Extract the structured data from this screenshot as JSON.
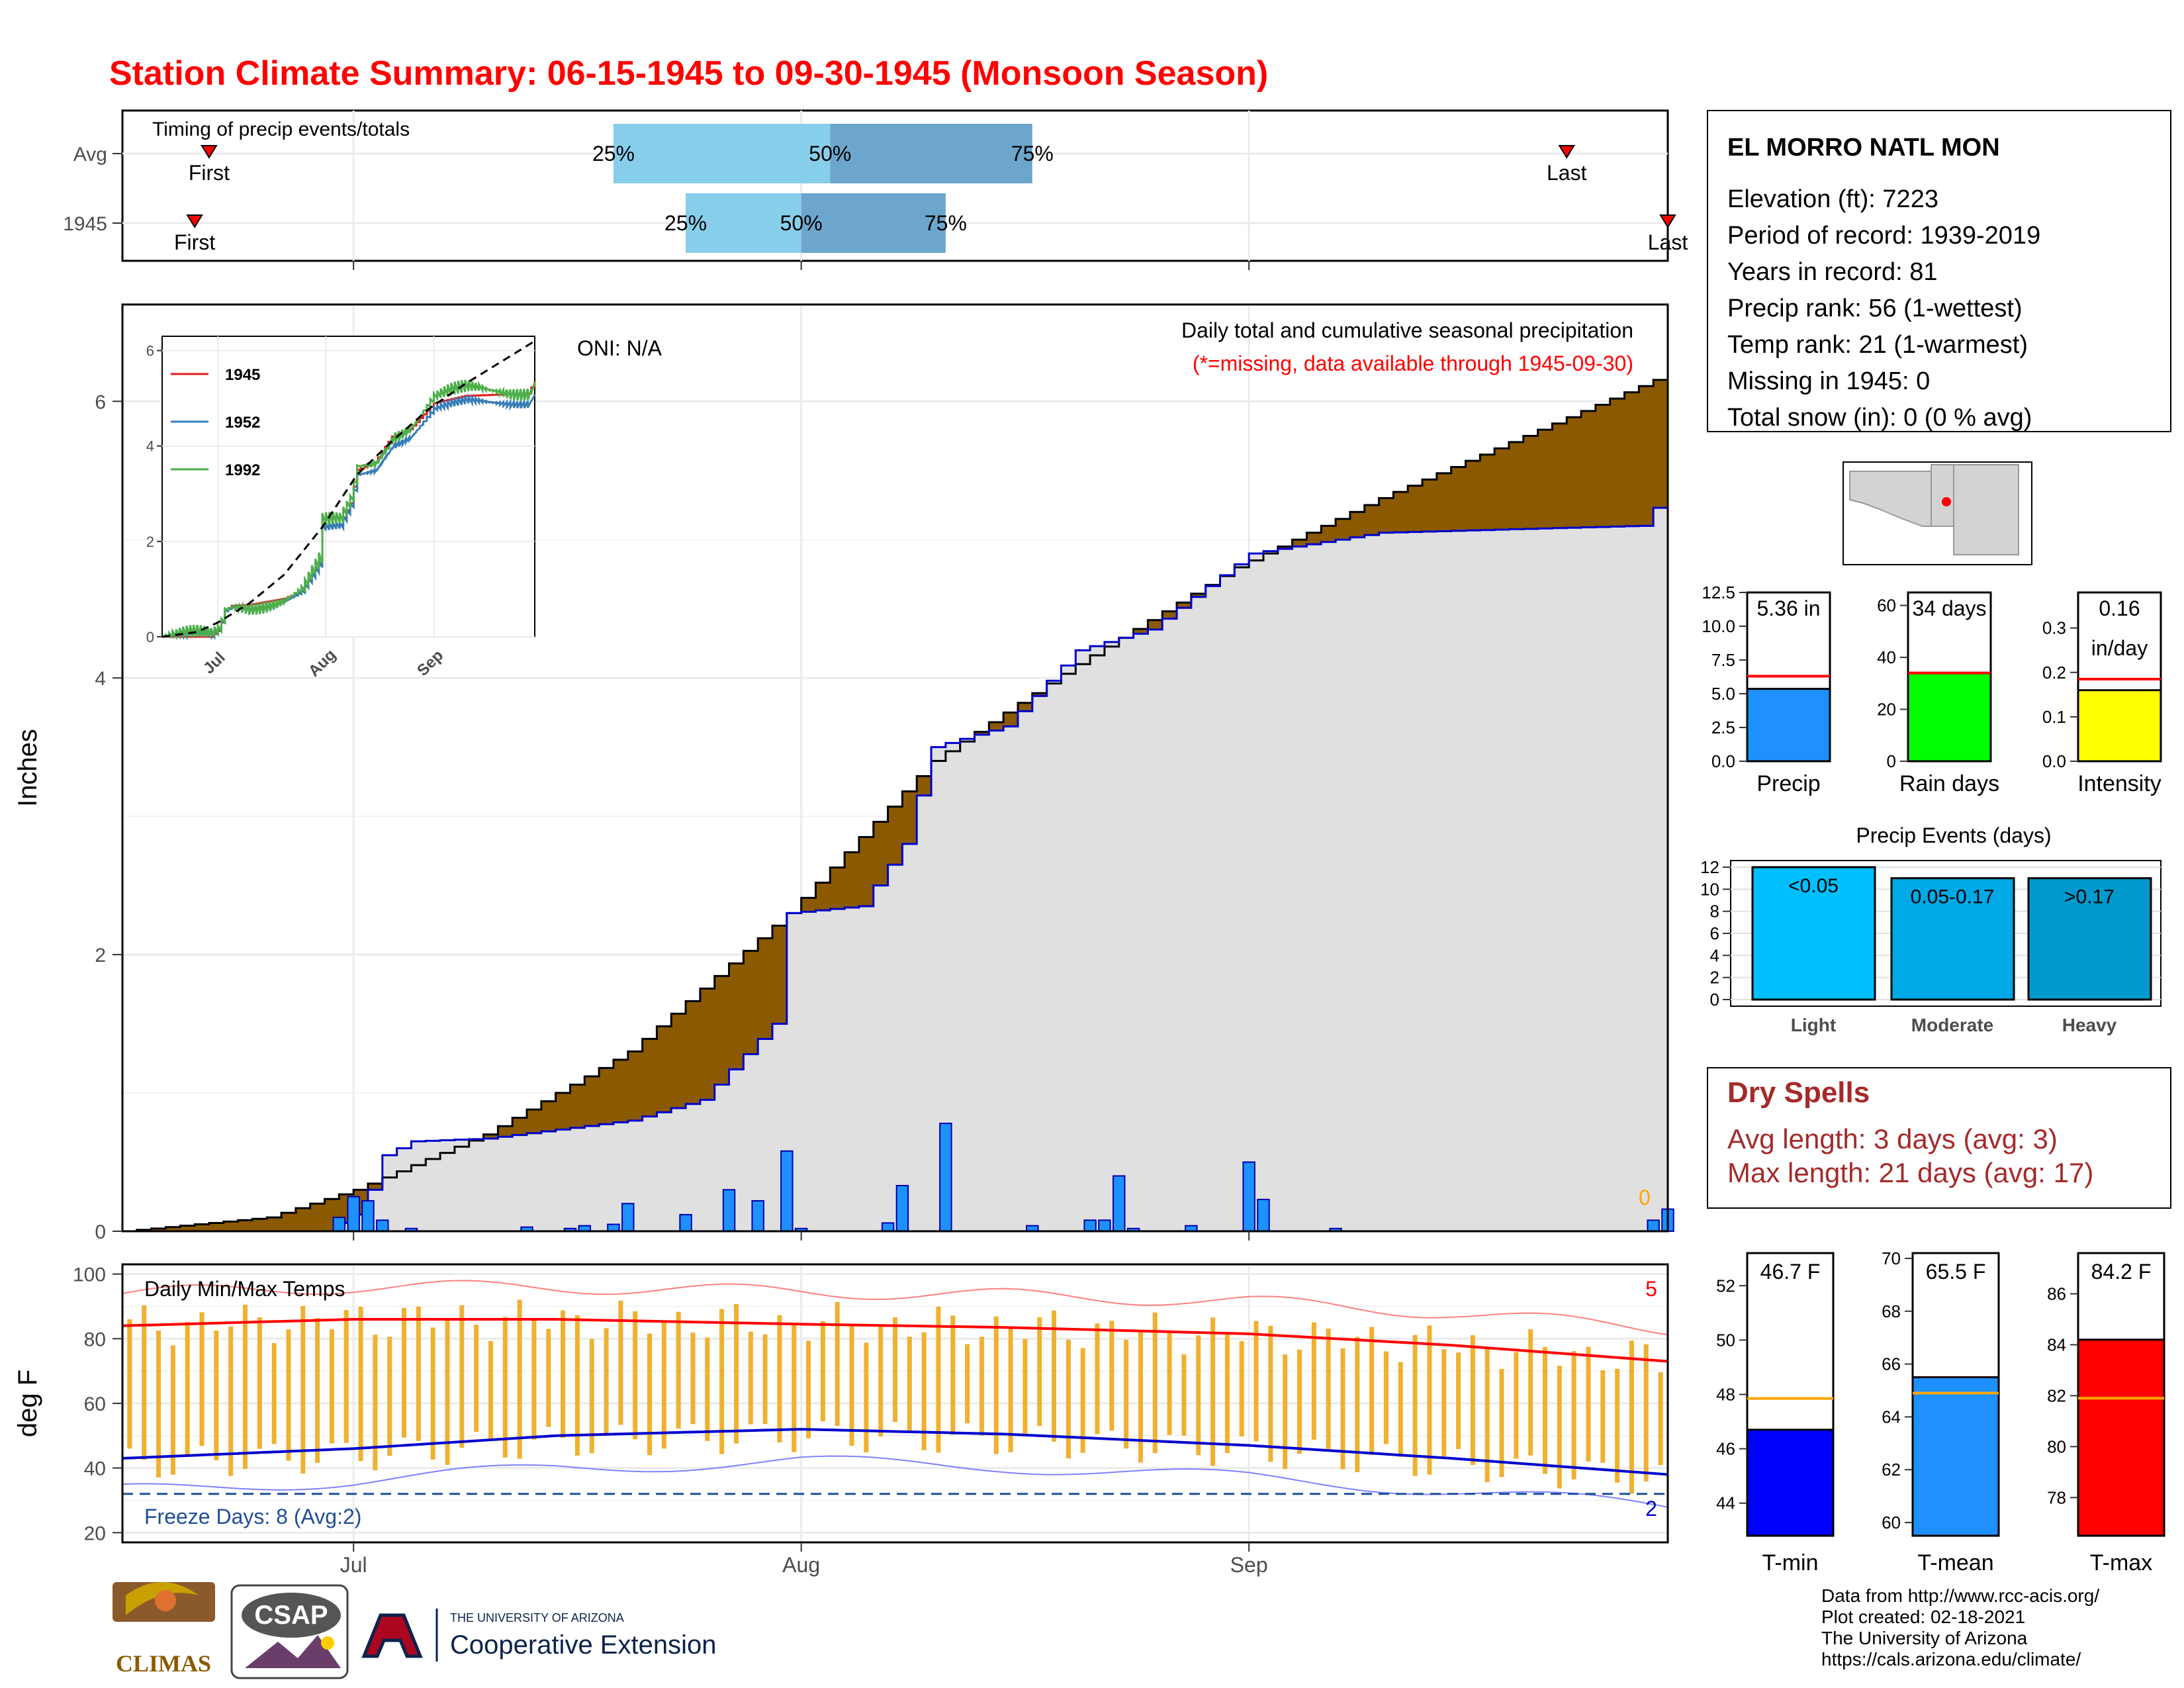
{
  "title": "Station Climate Summary: 06-15-1945 to 09-30-1945 (Monsoon Season)",
  "timing_panel": {
    "label": "Timing of precip events/totals",
    "rows": [
      {
        "name": "Avg",
        "first_label": "First",
        "last_label": "Last",
        "first_date": "06-21",
        "last_date": "09-23",
        "q25": "07-19",
        "q50": "08-03",
        "q75": "08-17",
        "q25_label": "25%",
        "q50_label": "50%",
        "q75_label": "75%"
      },
      {
        "name": "1945",
        "first_label": "First",
        "last_label": "Last",
        "first_date": "06-20",
        "last_date": "09-30",
        "q25": "07-24",
        "q50": "08-01",
        "q75": "08-11",
        "q25_label": "25%",
        "q50_label": "50%",
        "q75_label": "75%"
      }
    ],
    "colors": {
      "light": "#87ceeb",
      "dark": "#6ca6cd",
      "marker": "#ff0000"
    }
  },
  "precip_panel": {
    "ylabel": "Inches",
    "yticks": [
      "0",
      "2",
      "4",
      "6"
    ],
    "xticks": [
      "Jul",
      "Aug",
      "Sep"
    ],
    "oni": "ONI: N/A",
    "caption": "Daily total and cumulative seasonal precipitation",
    "missing_note": "(*=missing, data available through 1945-09-30)",
    "missing_count": "0",
    "colors": {
      "avg_fill": "#8b5a00",
      "above_fill": "#008000",
      "obs_fill": "#e0e0e0",
      "obs_line": "#0000cd",
      "bars": "#1e90ff"
    }
  },
  "inset": {
    "years": [
      "1945",
      "1952",
      "1992"
    ],
    "colors": [
      "#e41a1c",
      "#377eb8",
      "#4daf4a"
    ],
    "yticks": [
      "0",
      "2",
      "4",
      "6"
    ],
    "xticks": [
      "Jul",
      "Aug",
      "Sep"
    ]
  },
  "temp_panel": {
    "ylabel": "deg F",
    "label": "Daily Min/Max Temps",
    "yticks": [
      "20",
      "40",
      "60",
      "80",
      "100"
    ],
    "freeze_text": "Freeze Days: 8 (Avg:2)",
    "record_high_count": "5",
    "record_low_count": "2",
    "colors": {
      "bar": "#f0b030",
      "max_line": "#ff0000",
      "min_line": "#0000cd",
      "freeze_line": "#1f4e9a"
    }
  },
  "station_info": {
    "name": "EL MORRO NATL MON",
    "lines": [
      "Elevation (ft): 7223",
      "Period of record: 1939-2019",
      "Years in record: 81",
      "Precip rank: 56 (1-wettest)",
      "Temp rank: 21 (1-warmest)",
      "Missing in 1945: 0",
      "Total snow (in): 0 (0 % avg)"
    ]
  },
  "summary_bars": [
    {
      "label": "Precip",
      "value_text": "5.36 in",
      "value": 5.36,
      "avg": 6.3,
      "ymax": 12.5,
      "ticks": [
        "0.0",
        "2.5",
        "5.0",
        "7.5",
        "10.0",
        "12.5"
      ],
      "color": "#1e90ff"
    },
    {
      "label": "Rain days",
      "value_text": "34 days",
      "value": 34,
      "avg": 34,
      "ymax": 65,
      "ticks": [
        "0",
        "20",
        "40",
        "60"
      ],
      "color": "#00ff00"
    },
    {
      "label": "Intensity",
      "value_text": "0.16",
      "value_text2": "in/day",
      "value": 0.16,
      "avg": 0.185,
      "ymax": 0.38,
      "ticks": [
        "0.0",
        "0.1",
        "0.2",
        "0.3"
      ],
      "color": "#ffff00"
    }
  ],
  "precip_events": {
    "title": "Precip Events (days)",
    "ticks": [
      "0",
      "2",
      "4",
      "6",
      "8",
      "10",
      "12"
    ],
    "bars": [
      {
        "label": "Light",
        "range": "<0.05",
        "value": 12,
        "color": "#00bfff"
      },
      {
        "label": "Moderate",
        "range": "0.05-0.17",
        "value": 11,
        "color": "#00a8e6"
      },
      {
        "label": "Heavy",
        "range": ">0.17",
        "value": 11,
        "color": "#0099cc"
      }
    ]
  },
  "dry_spells": {
    "title": "Dry Spells",
    "avg_line": "Avg length: 3 days (avg: 3)",
    "max_line": "Max length: 21 days (avg: 17)"
  },
  "temp_bars": [
    {
      "label": "T-min",
      "value_text": "46.7 F",
      "value": 46.7,
      "avg": 47.85,
      "ymin": 42.8,
      "ymax": 53.2,
      "ticks": [
        "44",
        "46",
        "48",
        "50",
        "52"
      ],
      "color": "#0000ff"
    },
    {
      "label": "T-mean",
      "value_text": "65.5 F",
      "value": 65.5,
      "avg": 64.9,
      "ymin": 59.5,
      "ymax": 70.2,
      "ticks": [
        "60",
        "62",
        "64",
        "66",
        "68",
        "70"
      ],
      "color": "#1e90ff"
    },
    {
      "label": "T-max",
      "value_text": "84.2 F",
      "value": 84.2,
      "avg": 81.9,
      "ymin": 76.5,
      "ymax": 87.6,
      "ticks": [
        "78",
        "80",
        "82",
        "84",
        "86"
      ],
      "color": "#ff0000"
    }
  ],
  "footer": {
    "lines": [
      "Data from http://www.rcc-acis.org/",
      "Plot created: 02-18-2021",
      "The University of Arizona",
      "https://cals.arizona.edu/climate/"
    ],
    "logos": {
      "climas": "CLIMAS",
      "csap": "CSAP",
      "ua_small": "THE UNIVERSITY OF ARIZONA",
      "ua_big": "Cooperative Extension"
    }
  },
  "chart_data": [
    {
      "type": "area",
      "title": "Daily total and cumulative seasonal precipitation",
      "ylabel": "Inches",
      "x_range": [
        "1945-06-15",
        "1945-09-30"
      ],
      "ylim": [
        0,
        6.7
      ],
      "series": [
        {
          "name": "Average cumulative",
          "x": [
            "06-15",
            "06-25",
            "07-01",
            "07-10",
            "07-20",
            "07-31",
            "08-10",
            "08-20",
            "08-31",
            "09-10",
            "09-20",
            "09-30"
          ],
          "values": [
            0,
            0.1,
            0.3,
            0.7,
            1.3,
            2.3,
            3.4,
            4.1,
            4.8,
            5.3,
            5.75,
            6.2
          ]
        },
        {
          "name": "1945 cumulative",
          "x": [
            "06-15",
            "06-29",
            "07-01",
            "07-02",
            "07-03",
            "07-05",
            "07-10",
            "07-20",
            "07-25",
            "07-30",
            "07-31",
            "08-05",
            "08-08",
            "08-10",
            "08-15",
            "08-20",
            "08-25",
            "09-01",
            "09-10",
            "09-28",
            "09-30"
          ],
          "values": [
            0,
            0,
            0.12,
            0.3,
            0.55,
            0.65,
            0.67,
            0.8,
            0.95,
            1.5,
            2.3,
            2.35,
            2.8,
            3.5,
            3.65,
            4.2,
            4.35,
            4.9,
            5.05,
            5.1,
            5.36
          ]
        },
        {
          "name": "1945 daily",
          "x": [
            "06-30",
            "07-01",
            "07-02",
            "07-03",
            "07-05",
            "07-13",
            "07-16",
            "07-17",
            "07-19",
            "07-20",
            "07-24",
            "07-27",
            "07-29",
            "07-31",
            "08-01",
            "08-07",
            "08-08",
            "08-11",
            "08-17",
            "08-21",
            "08-22",
            "08-23",
            "08-24",
            "08-28",
            "09-01",
            "09-02",
            "09-07",
            "09-29",
            "09-30"
          ],
          "values": [
            0.1,
            0.25,
            0.22,
            0.08,
            0.02,
            0.03,
            0.02,
            0.04,
            0.05,
            0.2,
            0.12,
            0.3,
            0.22,
            0.58,
            0.02,
            0.06,
            0.33,
            0.78,
            0.04,
            0.08,
            0.08,
            0.4,
            0.02,
            0.04,
            0.5,
            0.23,
            0.02,
            0.08,
            0.16
          ]
        }
      ]
    },
    {
      "type": "line",
      "title": "Daily Min/Max Temps",
      "ylabel": "deg F",
      "ylim": [
        17,
        103
      ],
      "series": [
        {
          "name": "Average max",
          "x": [
            "06-15",
            "07-01",
            "07-15",
            "08-01",
            "08-15",
            "09-01",
            "09-15",
            "09-30"
          ],
          "values": [
            84,
            86,
            86,
            84.5,
            83.5,
            81.5,
            78,
            73
          ]
        },
        {
          "name": "Average min",
          "x": [
            "06-15",
            "07-01",
            "07-15",
            "08-01",
            "08-15",
            "09-01",
            "09-15",
            "09-30"
          ],
          "values": [
            43,
            46,
            50,
            52,
            50.5,
            47,
            43,
            38
          ]
        }
      ]
    }
  ]
}
